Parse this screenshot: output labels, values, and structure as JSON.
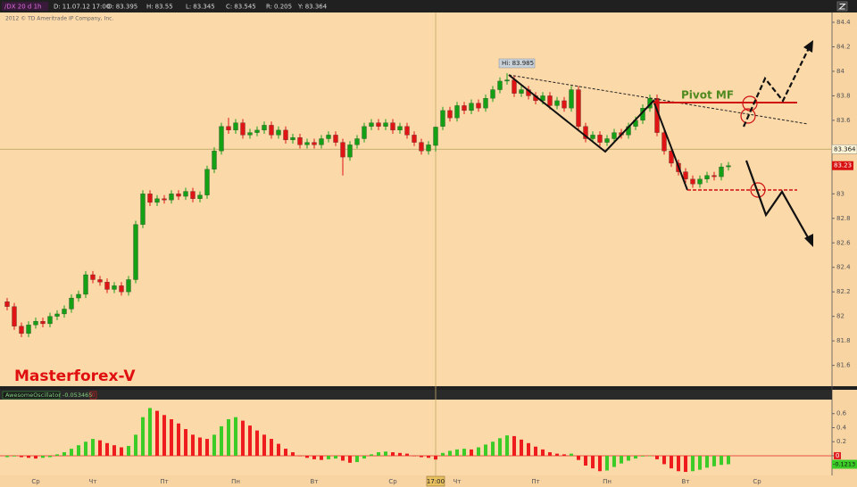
{
  "chart_data": {
    "type": "candlestick",
    "readout": {
      "symbol": "/DX 20 d 1h",
      "date_label": "D:",
      "date": "11.07.12 17:00",
      "open_label": "O:",
      "high_label": "H:",
      "low_label": "L:",
      "close_label": "C:",
      "range_label": "R:",
      "range": 0.205,
      "y_label": "Y:"
    },
    "copyright": "2012 © TD Ameritrade IP Company, Inc.",
    "categories": [
      null,
      null,
      null,
      null,
      "Ср",
      null,
      null,
      null,
      null,
      null,
      null,
      null,
      "Чт",
      null,
      null,
      null,
      null,
      null,
      null,
      null,
      null,
      null,
      "Пт",
      null,
      null,
      null,
      null,
      null,
      null,
      null,
      null,
      null,
      "Пн",
      null,
      null,
      null,
      null,
      null,
      null,
      null,
      null,
      null,
      null,
      "Вт",
      null,
      null,
      null,
      null,
      null,
      null,
      null,
      null,
      null,
      null,
      "Ср",
      null,
      null,
      null,
      null,
      null,
      "17:00",
      null,
      null,
      "Чт",
      null,
      null,
      null,
      null,
      null,
      null,
      null,
      null,
      null,
      null,
      "Пт",
      null,
      null,
      null,
      null,
      null,
      null,
      null,
      null,
      null,
      "Пн",
      null,
      null,
      null,
      null,
      null,
      null,
      null,
      null,
      null,
      null,
      "Вт",
      null,
      null,
      null,
      null,
      null,
      null,
      null,
      null,
      null,
      "Ср",
      null
    ],
    "open": [
      82.12,
      82.08,
      81.92,
      81.86,
      81.93,
      81.96,
      81.94,
      82.0,
      82.02,
      82.06,
      82.15,
      82.18,
      82.34,
      82.3,
      82.28,
      82.22,
      82.25,
      82.2,
      82.3,
      82.75,
      83.0,
      82.93,
      82.96,
      82.95,
      83.0,
      82.98,
      83.02,
      82.96,
      82.99,
      83.2,
      83.35,
      83.55,
      83.52,
      83.58,
      83.48,
      83.5,
      83.52,
      83.56,
      83.48,
      83.52,
      83.44,
      83.46,
      83.4,
      83.42,
      83.4,
      83.45,
      83.48,
      83.42,
      83.3,
      83.4,
      83.45,
      83.55,
      83.58,
      83.55,
      83.58,
      83.52,
      83.55,
      83.48,
      83.42,
      83.35,
      83.395,
      83.55,
      83.68,
      83.62,
      83.72,
      83.68,
      83.74,
      83.7,
      83.78,
      83.85,
      83.92,
      83.93,
      83.82,
      83.85,
      83.8,
      83.76,
      83.8,
      83.72,
      83.76,
      83.7,
      83.85,
      83.55,
      83.45,
      83.48,
      83.42,
      83.45,
      83.5,
      83.48,
      83.55,
      83.6,
      83.7,
      83.78,
      83.5,
      83.35,
      83.25,
      83.18,
      83.12,
      83.08,
      83.12,
      83.15,
      83.14,
      83.22,
      null,
      null,
      null,
      null,
      null
    ],
    "high": [
      82.15,
      82.11,
      81.95,
      81.96,
      81.99,
      81.99,
      82.03,
      82.05,
      82.09,
      82.18,
      82.21,
      82.37,
      82.37,
      82.33,
      82.31,
      82.28,
      82.28,
      82.33,
      82.78,
      83.03,
      83.03,
      82.99,
      82.99,
      83.03,
      83.03,
      83.05,
      83.05,
      83.02,
      83.23,
      83.38,
      83.58,
      83.62,
      83.61,
      83.61,
      83.53,
      83.55,
      83.59,
      83.59,
      83.55,
      83.55,
      83.49,
      83.49,
      83.45,
      83.45,
      83.48,
      83.51,
      83.51,
      83.45,
      83.43,
      83.48,
      83.58,
      83.61,
      83.61,
      83.61,
      83.61,
      83.58,
      83.58,
      83.51,
      83.45,
      83.43,
      83.55,
      83.71,
      83.71,
      83.75,
      83.75,
      83.77,
      83.77,
      83.81,
      83.88,
      83.95,
      83.985,
      83.96,
      83.88,
      83.88,
      83.83,
      83.83,
      83.83,
      83.79,
      83.79,
      83.88,
      83.88,
      83.58,
      83.51,
      83.51,
      83.48,
      83.53,
      83.53,
      83.58,
      83.63,
      83.73,
      83.81,
      83.81,
      83.53,
      83.38,
      83.28,
      83.21,
      83.15,
      83.15,
      83.18,
      83.18,
      83.25,
      83.26,
      null,
      null,
      null,
      null,
      null
    ],
    "low": [
      82.05,
      81.89,
      81.83,
      81.83,
      81.9,
      81.91,
      81.91,
      81.97,
      81.99,
      82.03,
      82.12,
      82.15,
      82.27,
      82.25,
      82.19,
      82.19,
      82.17,
      82.17,
      82.27,
      82.72,
      82.9,
      82.9,
      82.92,
      82.92,
      82.95,
      82.95,
      82.93,
      82.93,
      82.96,
      83.17,
      83.32,
      83.49,
      83.49,
      83.45,
      83.45,
      83.47,
      83.49,
      83.45,
      83.45,
      83.41,
      83.41,
      83.37,
      83.37,
      83.37,
      83.37,
      83.42,
      83.39,
      83.15,
      83.27,
      83.37,
      83.42,
      83.52,
      83.52,
      83.52,
      83.49,
      83.49,
      83.45,
      83.39,
      83.32,
      83.32,
      83.345,
      83.52,
      83.59,
      83.59,
      83.65,
      83.65,
      83.67,
      83.67,
      83.75,
      83.82,
      83.89,
      83.79,
      83.79,
      83.77,
      83.73,
      83.73,
      83.69,
      83.69,
      83.67,
      83.67,
      83.52,
      83.42,
      83.42,
      83.39,
      83.39,
      83.42,
      83.45,
      83.45,
      83.52,
      83.57,
      83.67,
      83.47,
      83.32,
      83.22,
      83.15,
      83.09,
      83.05,
      83.05,
      83.09,
      83.11,
      83.11,
      83.19,
      null,
      null,
      null,
      null,
      null
    ],
    "close": [
      82.08,
      81.92,
      81.86,
      81.93,
      81.96,
      81.94,
      82.0,
      82.02,
      82.06,
      82.15,
      82.18,
      82.34,
      82.3,
      82.28,
      82.22,
      82.25,
      82.2,
      82.3,
      82.75,
      83.0,
      82.93,
      82.96,
      82.95,
      83.0,
      82.98,
      83.02,
      82.96,
      82.99,
      83.2,
      83.35,
      83.55,
      83.52,
      83.58,
      83.48,
      83.5,
      83.52,
      83.56,
      83.48,
      83.52,
      83.44,
      83.46,
      83.4,
      83.42,
      83.4,
      83.45,
      83.48,
      83.42,
      83.3,
      83.4,
      83.45,
      83.55,
      83.58,
      83.55,
      83.58,
      83.52,
      83.55,
      83.48,
      83.42,
      83.35,
      83.4,
      83.545,
      83.68,
      83.62,
      83.72,
      83.68,
      83.74,
      83.7,
      83.78,
      83.85,
      83.92,
      83.93,
      83.82,
      83.85,
      83.8,
      83.76,
      83.8,
      83.72,
      83.76,
      83.7,
      83.85,
      83.55,
      83.45,
      83.48,
      83.42,
      83.45,
      83.5,
      83.48,
      83.55,
      83.6,
      83.7,
      83.78,
      83.5,
      83.35,
      83.25,
      83.18,
      83.12,
      83.08,
      83.12,
      83.15,
      83.14,
      83.22,
      83.23,
      null,
      null,
      null,
      null,
      null
    ],
    "up_color": "#14a014",
    "down_color": "#e01414",
    "ylim": [
      81.43,
      84.48
    ],
    "yticks": [
      84.4,
      84.2,
      84,
      83.8,
      83.6,
      83,
      82.8,
      82.6,
      82.4,
      82.2,
      82,
      81.8,
      81.6
    ],
    "crosshair": {
      "x": "17:00",
      "y": 83.364
    },
    "hi_label": "Hi:",
    "pivot_label": "Pivot MF",
    "brand": "Masterforex-V",
    "oscillator": {
      "type": "bar",
      "name": "AwesomeOscillator",
      "badge": "0",
      "values": [
        -0.02,
        -0.01,
        -0.02,
        -0.03,
        -0.04,
        -0.03,
        -0.02,
        0.02,
        0.05,
        0.1,
        0.15,
        0.2,
        0.24,
        0.22,
        0.18,
        0.15,
        0.12,
        0.14,
        0.3,
        0.55,
        0.68,
        0.64,
        0.58,
        0.52,
        0.46,
        0.38,
        0.3,
        0.26,
        0.24,
        0.3,
        0.42,
        0.52,
        0.55,
        0.5,
        0.43,
        0.36,
        0.3,
        0.24,
        0.17,
        0.1,
        0.05,
        0,
        -0.03,
        -0.05,
        -0.06,
        -0.05,
        -0.04,
        -0.07,
        -0.1,
        -0.09,
        -0.04,
        0.02,
        0.05,
        0.06,
        0.05,
        0.04,
        0.03,
        0,
        -0.02,
        -0.03,
        -0.053465,
        0.04,
        0.07,
        0.09,
        0.1,
        0.09,
        0.12,
        0.16,
        0.2,
        0.25,
        0.29,
        0.28,
        0.23,
        0.18,
        0.13,
        0.09,
        0.05,
        0.03,
        0.02,
        0.03,
        -0.06,
        -0.14,
        -0.18,
        -0.22,
        -0.21,
        -0.16,
        -0.11,
        -0.07,
        -0.04,
        -0.01,
        0,
        -0.05,
        -0.12,
        -0.18,
        -0.22,
        -0.23,
        -0.22,
        -0.2,
        -0.17,
        -0.15,
        -0.13,
        -0.1213,
        null,
        null,
        null,
        null,
        null
      ],
      "up_color": "#3ccc28",
      "down_color": "#ee1c1c",
      "ylim": [
        -0.28,
        0.8
      ],
      "yticks": [
        0.6,
        0.4,
        0.2,
        0
      ]
    }
  }
}
